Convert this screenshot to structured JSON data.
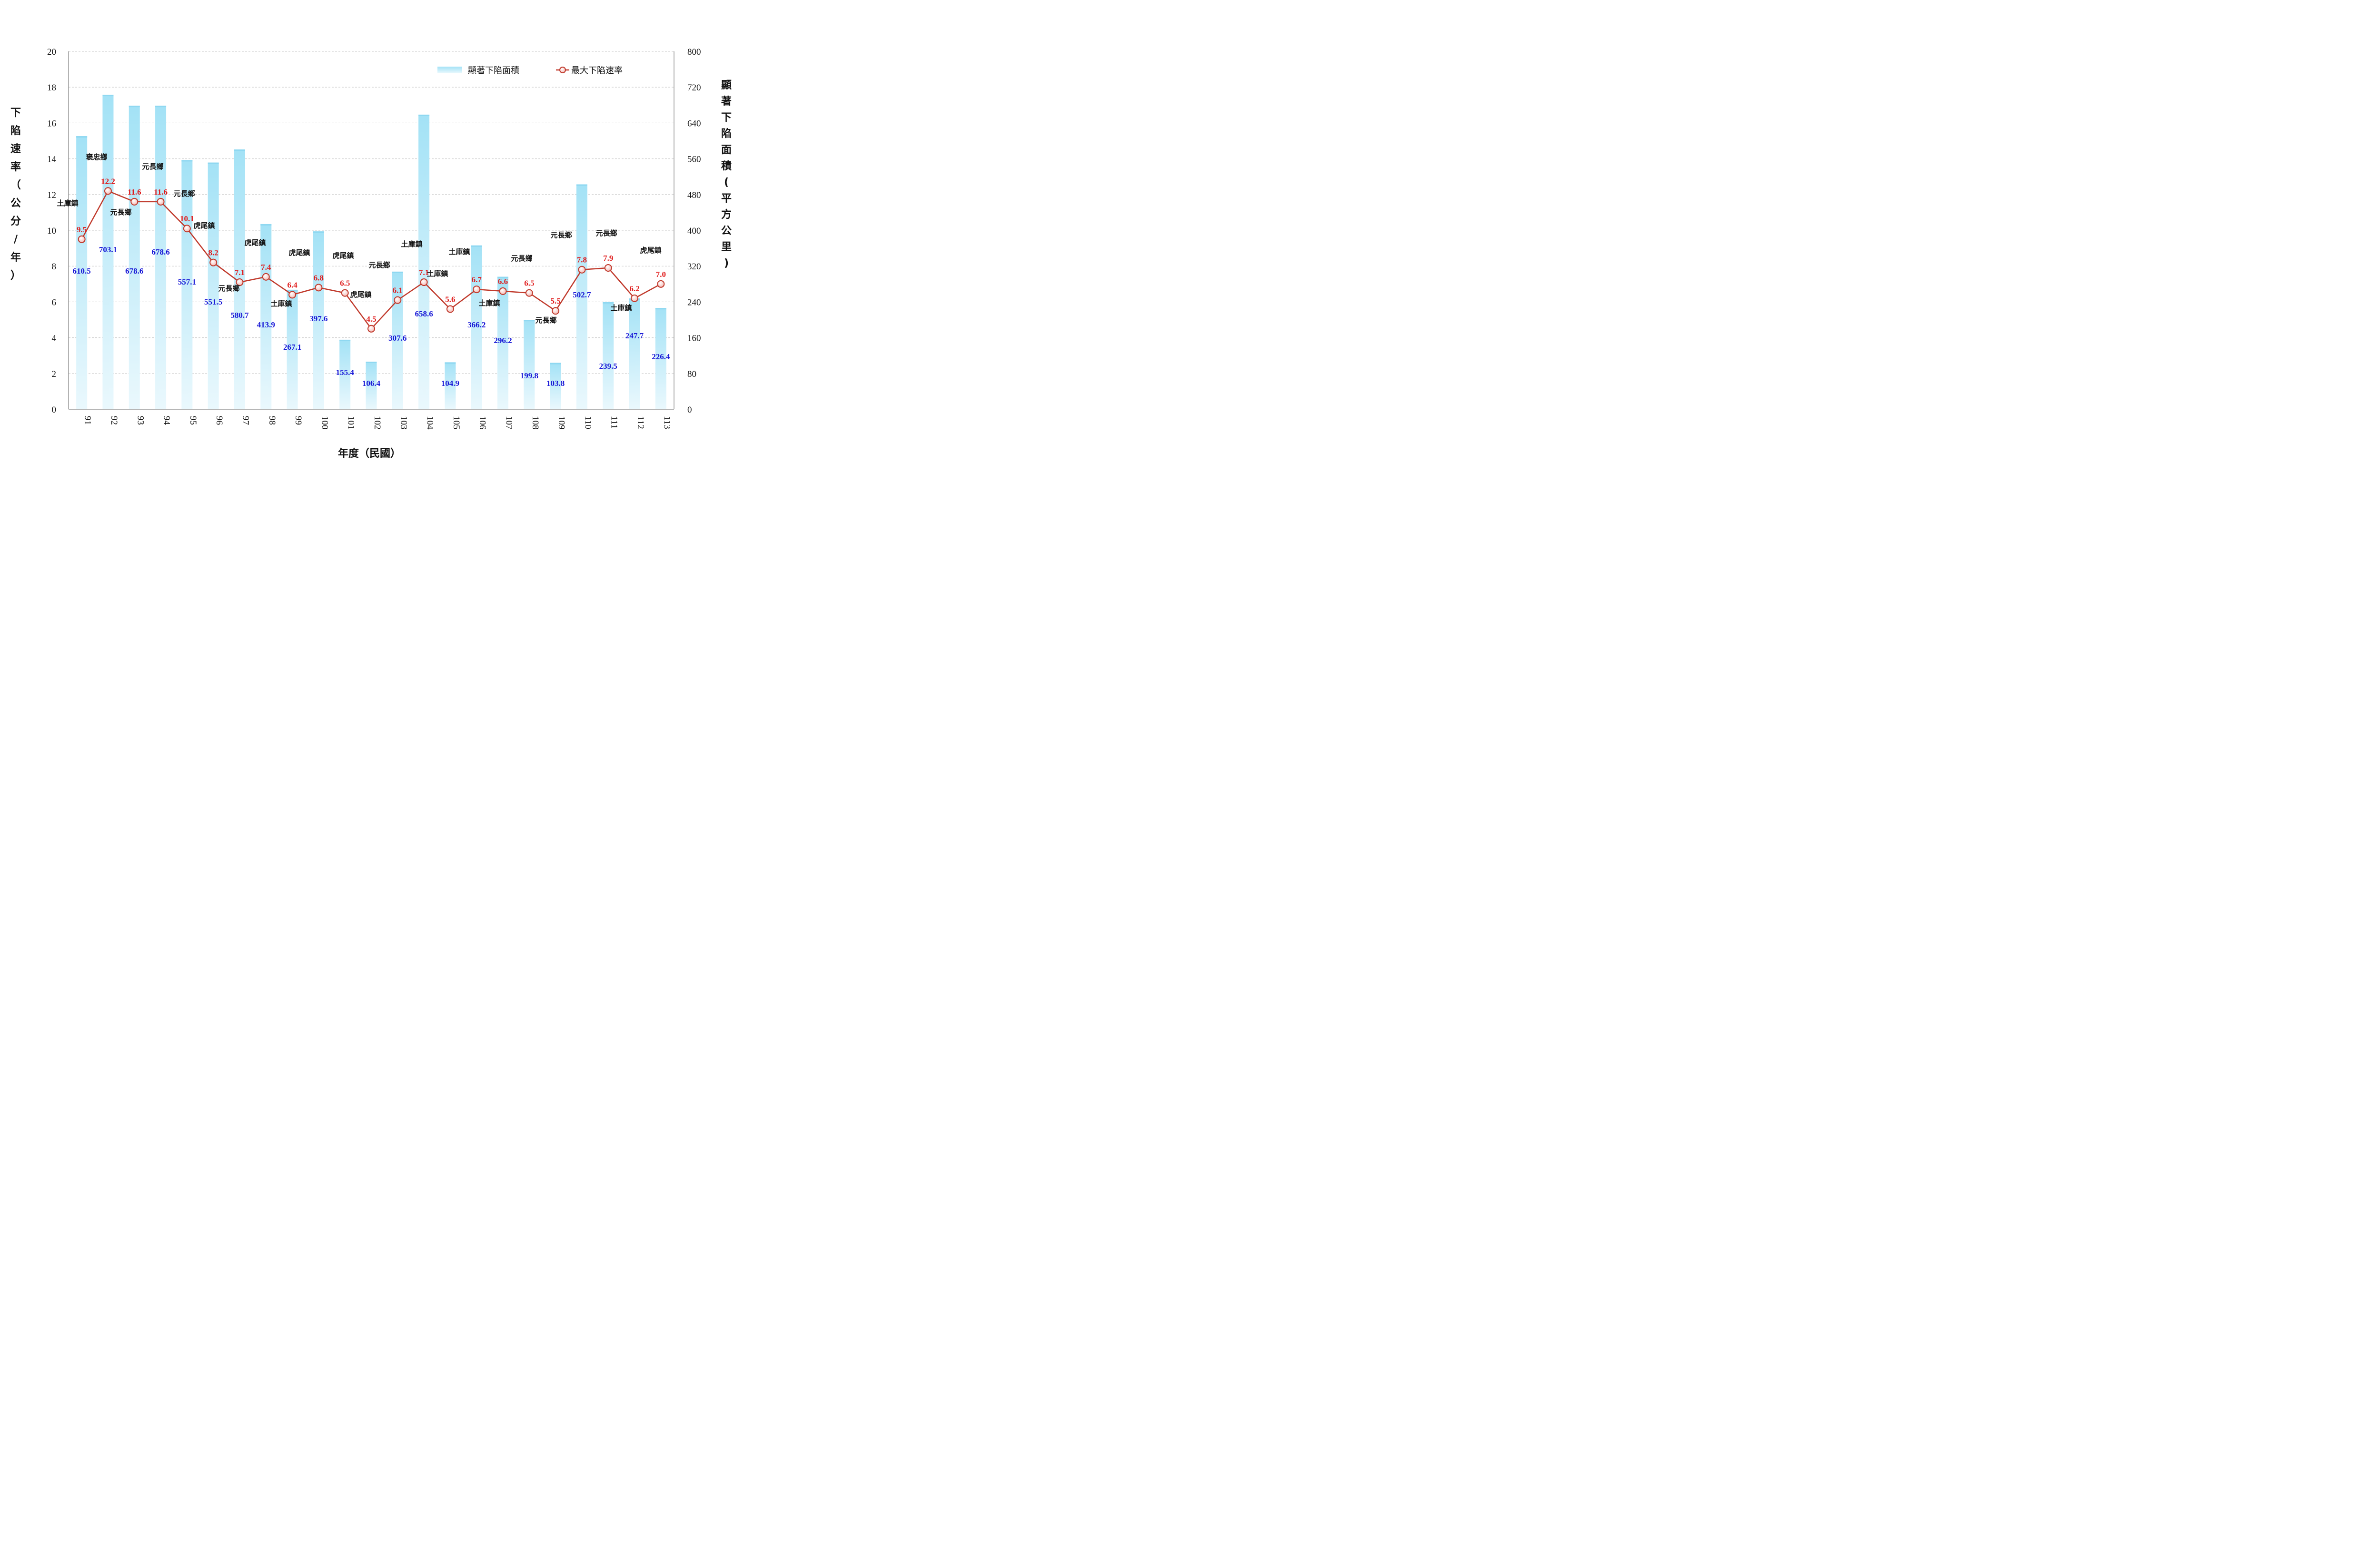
{
  "chart_data": {
    "type": "bar",
    "xlabel": "年度（民國）",
    "ylabel_left": "下陷速率（公分/年）",
    "ylabel_right": "顯著下陷面積(平方公里)",
    "ylim_left": [
      0,
      20
    ],
    "ylim_right": [
      0,
      800
    ],
    "yticks_left": [
      "0",
      "2",
      "4",
      "6",
      "8",
      "10",
      "12",
      "14",
      "16",
      "18",
      "20"
    ],
    "yticks_right": [
      "0",
      "80",
      "160",
      "240",
      "320",
      "400",
      "480",
      "560",
      "640",
      "720",
      "800"
    ],
    "grid": true,
    "legend_position": "top-right",
    "categories": [
      "91",
      "92",
      "93",
      "94",
      "95",
      "96",
      "97",
      "98",
      "99",
      "100",
      "101",
      "102",
      "103",
      "104",
      "105",
      "106",
      "107",
      "108",
      "109",
      "110",
      "111",
      "112",
      "113"
    ],
    "series": [
      {
        "name": "顯著下陷面積",
        "type": "bar",
        "axis": "right",
        "color": "#aee6f7",
        "values": [
          610.5,
          703.1,
          678.6,
          678.6,
          557.1,
          551.5,
          580.7,
          413.9,
          267.1,
          397.6,
          155.4,
          106.4,
          307.6,
          658.6,
          104.9,
          366.2,
          296.2,
          199.8,
          103.8,
          502.7,
          239.5,
          247.7,
          226.4
        ],
        "labels": [
          "610.5",
          "703.1",
          "678.6",
          "678.6",
          "557.1",
          "551.5",
          "580.7",
          "413.9",
          "267.1",
          "397.6",
          "155.4",
          "106.4",
          "307.6",
          "658.6",
          "104.9",
          "366.2",
          "296.2",
          "199.8",
          "103.8",
          "502.7",
          "239.5",
          "247.7",
          "226.4"
        ]
      },
      {
        "name": "最大下陷速率",
        "type": "line",
        "axis": "left",
        "color": "#c0392b",
        "values": [
          9.5,
          12.2,
          11.6,
          11.6,
          10.1,
          8.2,
          7.1,
          7.4,
          6.4,
          6.8,
          6.5,
          4.5,
          6.1,
          7.1,
          5.6,
          6.7,
          6.6,
          6.5,
          5.5,
          7.8,
          7.9,
          6.2,
          7.0
        ],
        "labels": [
          "9.5",
          "12.2",
          "11.6",
          "11.6",
          "10.1",
          "8.2",
          "7.1",
          "7.4",
          "6.4",
          "6.8",
          "6.5",
          "4.5",
          "6.1",
          "7.1",
          "5.6",
          "6.7",
          "6.6",
          "6.5",
          "5.5",
          "7.8",
          "7.9",
          "6.2",
          "7.0"
        ]
      }
    ],
    "annotations": [
      "土庫鎮",
      "褒忠鄉",
      "元長鄉",
      "元長鄉",
      "元長鄉",
      "虎尾鎮",
      "元長鄉",
      "虎尾鎮",
      "土庫鎮",
      "虎尾鎮",
      "虎尾鎮",
      "虎尾鎮",
      "元長鄉",
      "土庫鎮",
      "土庫鎮",
      "土庫鎮",
      "土庫鎮",
      "元長鄉",
      "元長鄉",
      "元長鄉",
      "元長鄉",
      "土庫鎮",
      "虎尾鎮"
    ]
  }
}
